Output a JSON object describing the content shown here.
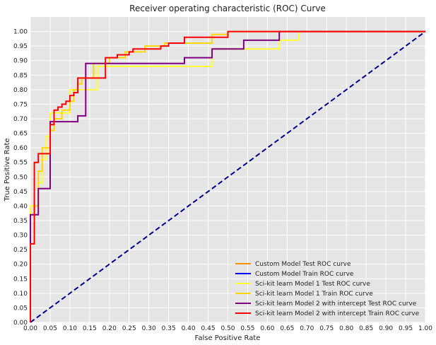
{
  "chart_data": {
    "type": "line",
    "title": "Receiver operating characteristic (ROC) Curve",
    "xlabel": "False Positive Rate",
    "ylabel": "True Positive Rate",
    "xlim": [
      0,
      1
    ],
    "ylim": [
      0,
      1.05
    ],
    "x_ticks": [
      "0.00",
      "0.05",
      "0.10",
      "0.15",
      "0.20",
      "0.25",
      "0.30",
      "0.35",
      "0.40",
      "0.45",
      "0.50",
      "0.55",
      "0.60",
      "0.65",
      "0.70",
      "0.75",
      "0.80",
      "0.85",
      "0.90",
      "0.95",
      "1.00"
    ],
    "y_ticks": [
      "0.00",
      "0.05",
      "0.10",
      "0.15",
      "0.20",
      "0.25",
      "0.30",
      "0.35",
      "0.40",
      "0.45",
      "0.50",
      "0.55",
      "0.60",
      "0.65",
      "0.70",
      "0.75",
      "0.80",
      "0.85",
      "0.90",
      "0.95",
      "1.00"
    ],
    "grid": true,
    "background": "#e5e5e5",
    "legend_position": "lower-right",
    "diagonal": {
      "x": [
        0,
        1
      ],
      "y": [
        0,
        1
      ],
      "color": "#00008b",
      "style": "dashed"
    },
    "series": [
      {
        "name": "Custom Model Test ROC curve",
        "color": "#ff8c00",
        "x": [
          0,
          0
        ],
        "y": [
          0,
          0
        ]
      },
      {
        "name": "Custom Model Train ROC curve",
        "color": "#0000ff",
        "x": [
          0,
          0
        ],
        "y": [
          0,
          0
        ]
      },
      {
        "name": "Sci-kit learn Model 1 Test ROC curve",
        "color": "#ffff33",
        "x": [
          0,
          0,
          0.01,
          0.01,
          0.02,
          0.02,
          0.03,
          0.03,
          0.04,
          0.04,
          0.05,
          0.05,
          0.06,
          0.06,
          0.07,
          0.07,
          0.1,
          0.1,
          0.12,
          0.12,
          0.17,
          0.17,
          0.19,
          0.19,
          0.24,
          0.24,
          0.43,
          0.43,
          0.46,
          0.46,
          0.48,
          0.48,
          0.63,
          0.63,
          0.68,
          0.68,
          1.0
        ],
        "y": [
          0,
          0.4,
          0.4,
          0.4,
          0.4,
          0.48,
          0.48,
          0.56,
          0.56,
          0.64,
          0.64,
          0.72,
          0.72,
          0.72,
          0.72,
          0.72,
          0.72,
          0.8,
          0.8,
          0.8,
          0.8,
          0.88,
          0.88,
          0.88,
          0.88,
          0.88,
          0.88,
          0.88,
          0.88,
          0.94,
          0.94,
          0.94,
          0.94,
          0.97,
          0.97,
          1.0,
          1.0
        ]
      },
      {
        "name": "Sci-kit learn Model 1 Train ROC curve",
        "color": "#ffd700",
        "x": [
          0,
          0,
          0.01,
          0.01,
          0.02,
          0.02,
          0.03,
          0.03,
          0.05,
          0.05,
          0.06,
          0.06,
          0.08,
          0.08,
          0.1,
          0.1,
          0.11,
          0.11,
          0.12,
          0.12,
          0.13,
          0.13,
          0.16,
          0.16,
          0.2,
          0.2,
          0.24,
          0.24,
          0.29,
          0.29,
          0.34,
          0.34,
          0.36,
          0.36,
          0.46,
          0.46,
          0.5,
          0.5,
          1.0
        ],
        "y": [
          0,
          0.37,
          0.37,
          0.4,
          0.4,
          0.52,
          0.52,
          0.6,
          0.6,
          0.66,
          0.66,
          0.7,
          0.7,
          0.73,
          0.73,
          0.76,
          0.76,
          0.8,
          0.8,
          0.82,
          0.82,
          0.84,
          0.84,
          0.89,
          0.89,
          0.91,
          0.91,
          0.93,
          0.93,
          0.95,
          0.95,
          0.96,
          0.96,
          0.96,
          0.96,
          0.99,
          0.99,
          1.0,
          1.0
        ]
      },
      {
        "name": "Sci-kit learn Model 2 with intercept Test ROC curve",
        "color": "#800080",
        "x": [
          0,
          0,
          0.02,
          0.02,
          0.05,
          0.05,
          0.06,
          0.06,
          0.12,
          0.12,
          0.14,
          0.14,
          0.16,
          0.16,
          0.39,
          0.39,
          0.46,
          0.46,
          0.54,
          0.54,
          0.63,
          0.63,
          1.0
        ],
        "y": [
          0,
          0.37,
          0.37,
          0.46,
          0.46,
          0.69,
          0.69,
          0.69,
          0.69,
          0.71,
          0.71,
          0.89,
          0.89,
          0.89,
          0.89,
          0.91,
          0.91,
          0.94,
          0.94,
          0.97,
          0.97,
          1.0,
          1.0
        ]
      },
      {
        "name": "Sci-kit learn Model 2 with intercept Train ROC curve",
        "color": "#ff0000",
        "x": [
          0,
          0,
          0.01,
          0.01,
          0.02,
          0.02,
          0.05,
          0.05,
          0.06,
          0.06,
          0.07,
          0.07,
          0.08,
          0.08,
          0.09,
          0.09,
          0.1,
          0.1,
          0.11,
          0.11,
          0.12,
          0.12,
          0.15,
          0.15,
          0.19,
          0.19,
          0.22,
          0.22,
          0.25,
          0.25,
          0.26,
          0.26,
          0.33,
          0.33,
          0.35,
          0.35,
          0.39,
          0.39,
          0.44,
          0.44,
          0.5,
          0.5,
          1.0
        ],
        "y": [
          0,
          0.27,
          0.27,
          0.55,
          0.55,
          0.58,
          0.58,
          0.68,
          0.68,
          0.73,
          0.73,
          0.74,
          0.74,
          0.75,
          0.75,
          0.76,
          0.76,
          0.78,
          0.78,
          0.79,
          0.79,
          0.84,
          0.84,
          0.84,
          0.84,
          0.91,
          0.91,
          0.92,
          0.92,
          0.93,
          0.93,
          0.94,
          0.94,
          0.95,
          0.95,
          0.96,
          0.96,
          0.98,
          0.98,
          0.98,
          0.98,
          1.0,
          1.0
        ]
      }
    ]
  }
}
